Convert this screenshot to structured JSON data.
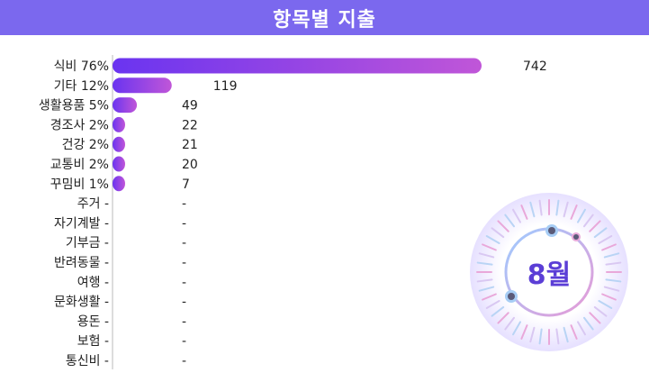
{
  "title": "항목별 지출",
  "month_label": "8월",
  "colors": {
    "header": "#7b68ee",
    "bar_start": "#6a34f0",
    "bar_end": "#c056d8",
    "badge_text": "#5b3ed6"
  },
  "chart_data": {
    "type": "bar",
    "orientation": "horizontal",
    "title": "항목별 지출",
    "categories": [
      "식비",
      "기타",
      "생활용품",
      "경조사",
      "건강",
      "교통비",
      "꾸밈비",
      "주거",
      "자기계발",
      "기부금",
      "반려동물",
      "여행",
      "문화생활",
      "용돈",
      "보험",
      "통신비"
    ],
    "percent_labels": [
      "76%",
      "12%",
      "5%",
      "2%",
      "2%",
      "2%",
      "1%",
      "-",
      "-",
      "-",
      "-",
      "-",
      "-",
      "-",
      "-",
      "-"
    ],
    "values": [
      742,
      119,
      49,
      22,
      21,
      20,
      7,
      null,
      null,
      null,
      null,
      null,
      null,
      null,
      null,
      null
    ],
    "value_labels": [
      "742",
      "119",
      "49",
      "22",
      "21",
      "20",
      "7",
      "-",
      "-",
      "-",
      "-",
      "-",
      "-",
      "-",
      "-",
      "-"
    ],
    "xlim": [
      0,
      742
    ]
  }
}
